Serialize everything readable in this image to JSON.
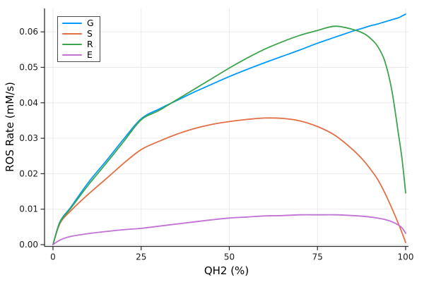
{
  "figure": {
    "background": "#ffffff",
    "grid_color": "#e8e8e8",
    "spine_color": "#2c2c2c",
    "tick_label_color": "#1a1a1a"
  },
  "chart_data": {
    "type": "line",
    "title": "",
    "xlabel": "QH2 (%)",
    "ylabel": "ROS Rate (mM/s)",
    "xlim": [
      0,
      100
    ],
    "ylim": [
      0,
      0.065
    ],
    "grid": true,
    "legend_position": "top-left",
    "xticks": {
      "values": [
        0,
        25,
        50,
        75,
        100
      ],
      "labels": [
        "0",
        "25",
        "50",
        "75",
        "100"
      ]
    },
    "yticks": {
      "values": [
        0,
        0.01,
        0.02,
        0.03,
        0.04,
        0.05,
        0.06
      ],
      "labels": [
        "0.00",
        "0.01",
        "0.02",
        "0.03",
        "0.04",
        "0.05",
        "0.06"
      ]
    },
    "x": [
      0,
      2,
      5,
      10,
      15,
      20,
      25,
      30,
      35,
      40,
      45,
      50,
      55,
      60,
      65,
      70,
      75,
      80,
      85,
      88,
      90,
      92,
      94,
      96,
      98,
      99,
      100
    ],
    "series": [
      {
        "name": "G",
        "color": "#009AFA",
        "values": [
          0,
          0.0065,
          0.0105,
          0.0175,
          0.0235,
          0.0297,
          0.0355,
          0.0382,
          0.0406,
          0.043,
          0.0452,
          0.0474,
          0.0494,
          0.0513,
          0.0531,
          0.0549,
          0.0568,
          0.0585,
          0.0602,
          0.0611,
          0.0617,
          0.0622,
          0.0628,
          0.0634,
          0.064,
          0.0645,
          0.065
        ]
      },
      {
        "name": "S",
        "color": "#E26F46",
        "values": [
          0,
          0.006,
          0.0095,
          0.0142,
          0.0185,
          0.0229,
          0.0268,
          0.0291,
          0.0311,
          0.0327,
          0.0339,
          0.0347,
          0.0353,
          0.0357,
          0.0356,
          0.0349,
          0.0333,
          0.0308,
          0.0268,
          0.0238,
          0.0213,
          0.0185,
          0.0148,
          0.0105,
          0.0058,
          0.0033,
          0.0006
        ]
      },
      {
        "name": "R",
        "color": "#3DA44D",
        "values": [
          0,
          0.0063,
          0.0102,
          0.0168,
          0.0228,
          0.029,
          0.0352,
          0.0378,
          0.0408,
          0.0438,
          0.0468,
          0.0498,
          0.0526,
          0.0551,
          0.0572,
          0.059,
          0.0604,
          0.0616,
          0.0607,
          0.0596,
          0.0582,
          0.056,
          0.052,
          0.044,
          0.031,
          0.024,
          0.0146
        ]
      },
      {
        "name": "E",
        "color": "#C271D4",
        "values": [
          0,
          0.0013,
          0.0023,
          0.0031,
          0.0037,
          0.0042,
          0.0046,
          0.0052,
          0.0058,
          0.0064,
          0.007,
          0.0075,
          0.0078,
          0.0081,
          0.0082,
          0.0084,
          0.0084,
          0.0084,
          0.0082,
          0.008,
          0.0078,
          0.0075,
          0.0071,
          0.0065,
          0.0055,
          0.0047,
          0.0032
        ]
      }
    ]
  }
}
